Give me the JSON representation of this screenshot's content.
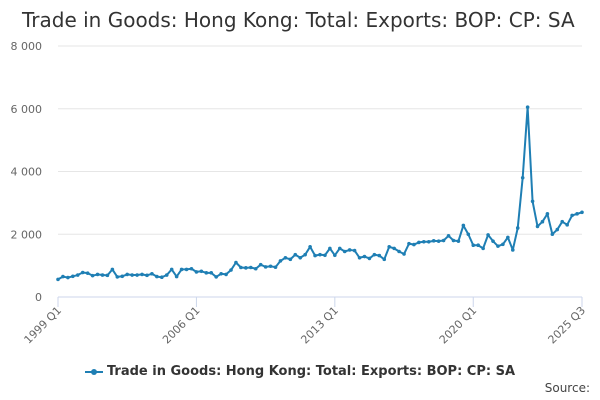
{
  "title": "Trade in Goods: Hong Kong: Total: Exports: BOP: CP: SA",
  "source_label": "Source:",
  "colors": {
    "series": "#1f7fb4",
    "grid": "#e6e6e6",
    "axis": "#ccd6eb",
    "tick_text": "#666666"
  },
  "chart_data": {
    "type": "line",
    "y_tick_labels": [
      "0",
      "2 000",
      "4 000",
      "6 000",
      "8 000"
    ],
    "y_ticks": [
      0,
      2000,
      4000,
      6000,
      8000
    ],
    "ylim": [
      0,
      8000
    ],
    "x_tick_labels": [
      "1999 Q1",
      "2006 Q1",
      "2013 Q1",
      "2020 Q1",
      "2025 Q3"
    ],
    "x_tick_positions": [
      "1999 Q1",
      "2006 Q1",
      "2013 Q1",
      "2020 Q1",
      "2025 Q3"
    ],
    "grid": true,
    "legend_position": "bottom-center",
    "series": [
      {
        "name": "Trade in Goods: Hong Kong: Total: Exports: BOP: CP: SA",
        "x_start": "1999 Q1",
        "frequency": "quarterly",
        "values": [
          560,
          650,
          620,
          660,
          700,
          780,
          760,
          680,
          720,
          700,
          690,
          880,
          640,
          660,
          720,
          700,
          700,
          720,
          690,
          740,
          650,
          630,
          700,
          880,
          650,
          880,
          880,
          900,
          800,
          820,
          770,
          770,
          640,
          740,
          720,
          860,
          1100,
          940,
          930,
          940,
          900,
          1030,
          960,
          980,
          950,
          1150,
          1250,
          1200,
          1350,
          1250,
          1350,
          1600,
          1320,
          1350,
          1330,
          1550,
          1330,
          1550,
          1450,
          1500,
          1480,
          1250,
          1290,
          1230,
          1350,
          1320,
          1200,
          1600,
          1550,
          1450,
          1370,
          1700,
          1670,
          1740,
          1760,
          1760,
          1790,
          1780,
          1800,
          1950,
          1800,
          1780,
          2280,
          2000,
          1650,
          1650,
          1550,
          1980,
          1780,
          1620,
          1680,
          1900,
          1500,
          2200,
          3800,
          6050,
          3050,
          2250,
          2400,
          2650,
          2000,
          2150,
          2400,
          2300,
          2600,
          2650,
          2700
        ]
      }
    ]
  }
}
